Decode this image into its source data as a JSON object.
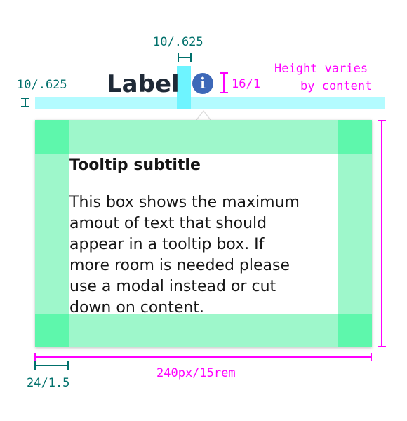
{
  "label": {
    "text": "Label",
    "info_glyph": "i",
    "info_icon_name": "info-icon"
  },
  "annotations": {
    "top_spacing": "10/.625",
    "left_spacing": "10/.625",
    "icon_size": "16/1",
    "height_note_line1": "Height varies",
    "height_note_line2": "by content",
    "padding": "24/1.5",
    "width": "240px/15rem"
  },
  "tooltip": {
    "subtitle": "Tooltip subtitle",
    "body_lines": [
      "This box shows the maximum",
      "amout of text that should",
      "appear in a tooltip box. If",
      "more room is needed please",
      "use a modal instead or cut",
      "down on content."
    ]
  },
  "colors": {
    "annotation_teal": "#00706b",
    "annotation_magenta": "#ff00ff",
    "spacing_cyan": "#b3fbff",
    "spacing_cyan_strong": "#6ef4ff",
    "padding_green": "#9ef7cb",
    "padding_green_corner": "#5ef7ac",
    "info_icon_blue": "#3d68b8",
    "label_text": "#1f2a37"
  }
}
